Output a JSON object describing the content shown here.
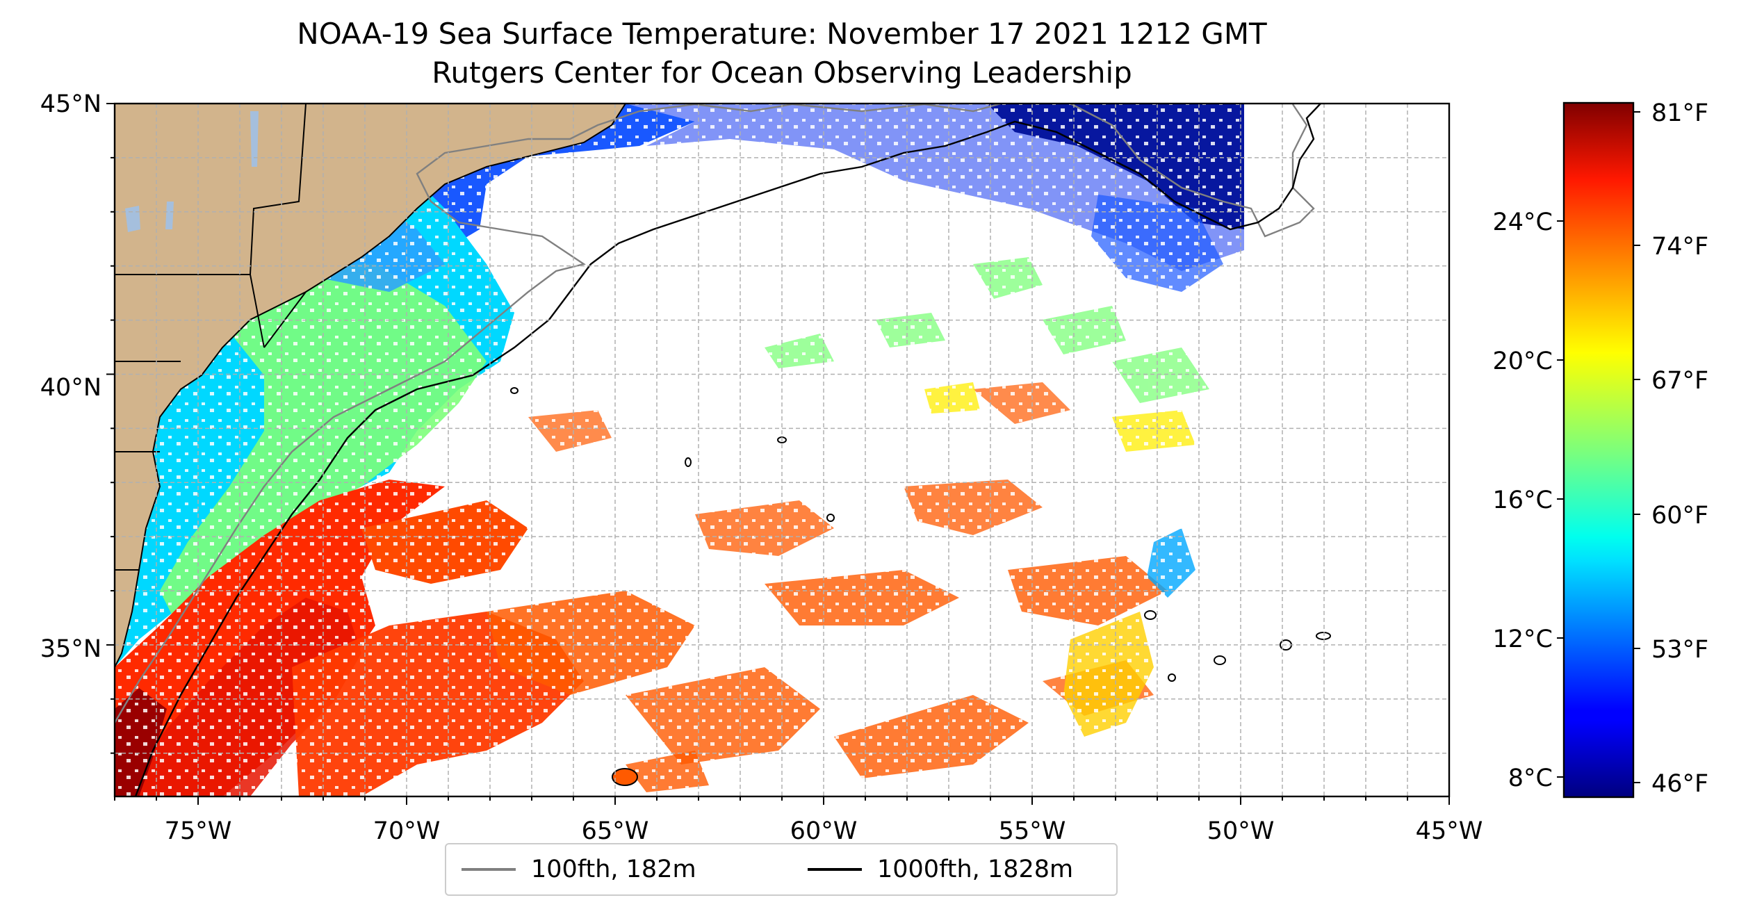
{
  "title_line1": "NOAA-19 Sea Surface Temperature: November 17 2021 1212 GMT",
  "title_line2": "Rutgers Center for Ocean Observing Leadership",
  "map": {
    "lon_range": [
      -77,
      -45
    ],
    "lat_range": [
      32.2,
      45
    ],
    "x_ticks": [
      "75°W",
      "70°W",
      "65°W",
      "60°W",
      "55°W",
      "50°W",
      "45°W"
    ],
    "y_ticks": [
      "35°N",
      "40°N",
      "45°N"
    ],
    "grid": "on, dashed",
    "land_color": "#d2b48c",
    "lake_color": "#a5bfdd",
    "no_data_color": "#ffffff"
  },
  "legend": {
    "placement": "bottom-center, below map",
    "items": [
      {
        "label": "100fth, 182m",
        "color": "#808080"
      },
      {
        "label": "1000fth, 1828m",
        "color": "#000000"
      }
    ]
  },
  "colorbar": {
    "colormap": "jet",
    "range_f": [
      45.5,
      82
    ],
    "left_ticks": [
      "24°C",
      "20°C",
      "16°C",
      "12°C",
      "8°C"
    ],
    "right_ticks": [
      "81°F",
      "74°F",
      "67°F",
      "60°F",
      "53°F",
      "46°F"
    ]
  }
}
